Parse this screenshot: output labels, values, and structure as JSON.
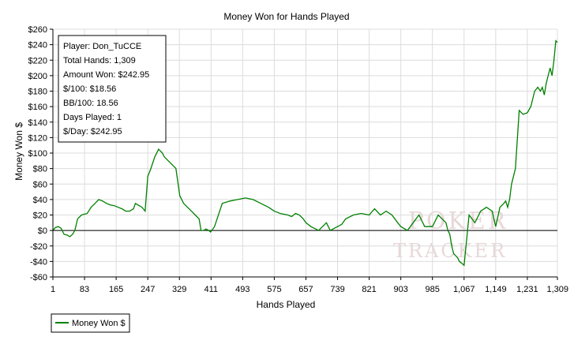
{
  "chart_data": {
    "type": "line",
    "title": "Money Won for Hands Played",
    "xlabel": "Hands Played",
    "ylabel": "Money Won $",
    "xlim": [
      1,
      1309
    ],
    "ylim": [
      -60,
      260
    ],
    "x_ticks": [
      1,
      83,
      165,
      247,
      329,
      411,
      493,
      575,
      657,
      739,
      821,
      903,
      985,
      1067,
      1149,
      1231,
      1309
    ],
    "x_tick_labels": [
      "1",
      "83",
      "165",
      "247",
      "329",
      "411",
      "493",
      "575",
      "657",
      "739",
      "821",
      "903",
      "985",
      "1,067",
      "1,149",
      "1,231",
      "1,309"
    ],
    "y_ticks": [
      -60,
      -40,
      -20,
      0,
      20,
      40,
      60,
      80,
      100,
      120,
      140,
      160,
      180,
      200,
      220,
      240,
      260
    ],
    "y_tick_labels": [
      "-$60",
      "-$40",
      "-$20",
      "$0",
      "$20",
      "$40",
      "$60",
      "$80",
      "$100",
      "$120",
      "$140",
      "$160",
      "$180",
      "$200",
      "$220",
      "$240",
      "$260"
    ],
    "grid": true,
    "legend_position": "bottom-left",
    "series": [
      {
        "name": "Money Won $",
        "color": "#008000",
        "x": [
          1,
          8,
          15,
          22,
          30,
          38,
          45,
          52,
          58,
          65,
          75,
          90,
          100,
          110,
          120,
          130,
          140,
          150,
          160,
          170,
          180,
          190,
          200,
          210,
          215,
          225,
          232,
          240,
          247,
          255,
          265,
          275,
          285,
          290,
          300,
          310,
          320,
          330,
          340,
          350,
          360,
          370,
          380,
          385,
          392,
          398,
          405,
          410,
          420,
          440,
          460,
          480,
          500,
          520,
          540,
          560,
          575,
          590,
          610,
          620,
          630,
          640,
          650,
          657,
          670,
          690,
          700,
          710,
          720,
          739,
          750,
          760,
          780,
          800,
          821,
          835,
          850,
          865,
          880,
          895,
          903,
          920,
          935,
          950,
          965,
          985,
          1000,
          1010,
          1020,
          1025,
          1030,
          1035,
          1040,
          1050,
          1055,
          1060,
          1067,
          1080,
          1095,
          1110,
          1125,
          1140,
          1149,
          1160,
          1170,
          1175,
          1180,
          1185,
          1190,
          1200,
          1210,
          1220,
          1231,
          1240,
          1250,
          1258,
          1265,
          1270,
          1275,
          1280,
          1290,
          1295,
          1300,
          1305,
          1309
        ],
        "y": [
          0,
          4,
          5,
          3,
          -5,
          -6,
          -8,
          -5,
          0,
          15,
          20,
          22,
          30,
          35,
          40,
          38,
          35,
          33,
          32,
          30,
          28,
          25,
          25,
          28,
          35,
          32,
          30,
          25,
          70,
          80,
          95,
          105,
          100,
          95,
          90,
          85,
          80,
          45,
          35,
          30,
          25,
          20,
          15,
          0,
          0,
          2,
          0,
          -2,
          5,
          35,
          38,
          40,
          42,
          40,
          35,
          30,
          25,
          22,
          20,
          18,
          22,
          20,
          15,
          10,
          5,
          0,
          5,
          10,
          0,
          5,
          8,
          15,
          20,
          22,
          20,
          28,
          20,
          25,
          20,
          10,
          5,
          0,
          10,
          20,
          5,
          5,
          20,
          15,
          10,
          0,
          -5,
          -20,
          -30,
          -35,
          -40,
          -42,
          -45,
          20,
          10,
          25,
          30,
          25,
          5,
          30,
          35,
          38,
          30,
          40,
          60,
          80,
          155,
          150,
          152,
          160,
          180,
          185,
          180,
          185,
          175,
          190,
          210,
          200,
          220,
          245,
          243
        ]
      }
    ],
    "info_box": {
      "lines": [
        "Player: Don_TuCCE",
        "Total Hands: 1,309",
        "Amount Won: $242.95",
        "$/100: $18.56",
        "BB/100: 18.56",
        "Days Played: 1",
        "$/Day: $242.95"
      ]
    },
    "watermark": {
      "lines": [
        "POKER",
        "TRACKER"
      ],
      "color": "#e8d8d8"
    },
    "colors": {
      "line": "#008000",
      "grid": "#dcdcdc",
      "axis": "#000000",
      "zero_line": "#000000"
    }
  }
}
